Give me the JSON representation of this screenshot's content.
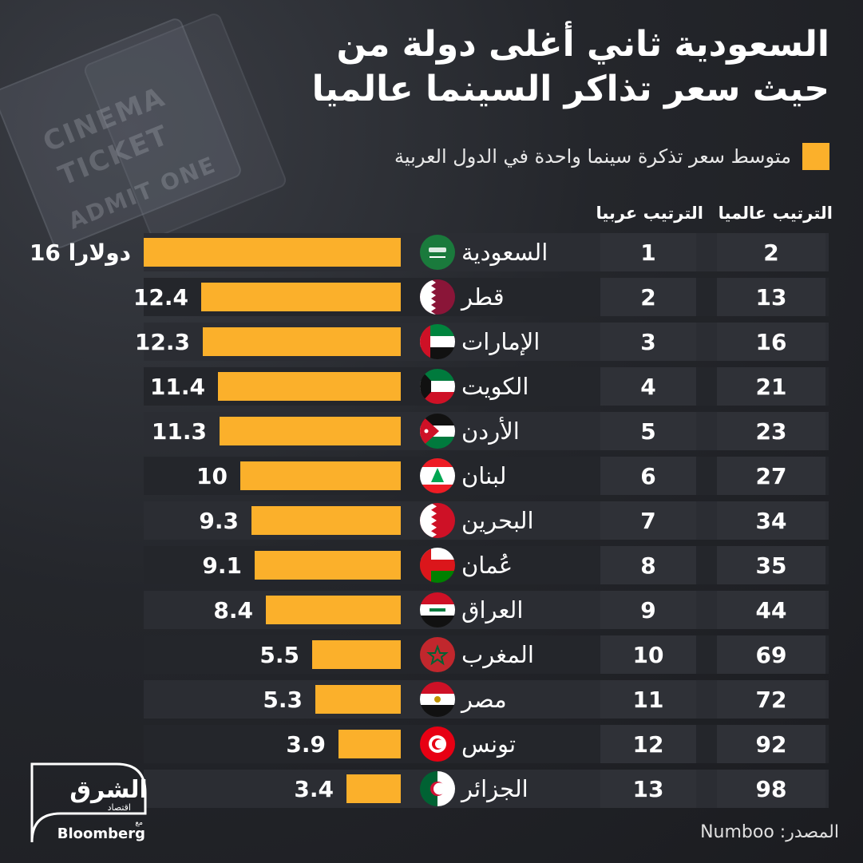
{
  "background": {
    "ticket_line1": "CINEMA",
    "ticket_line2": "TICKET",
    "ticket_line3": "ADMIT ONE"
  },
  "brand": {
    "logo_main": "الشرق",
    "logo_sub": "اقتصاد",
    "logo_with": "مع",
    "partner": "Bloomberg"
  },
  "chart_data": {
    "type": "bar",
    "orientation": "horizontal",
    "title_line1": "السعودية ثاني أغلى دولة من",
    "title_line2": "حيث سعر تذاكر السينما عالميا",
    "legend": "متوسط سعر تذكرة سينما واحدة في الدول العربية",
    "headers": {
      "world_rank": "الترتيب عالميا",
      "arab_rank": "الترتيب عربيا"
    },
    "unit_suffix": "دولارا",
    "value_range": [
      0,
      16
    ],
    "source_label": "المصدر:",
    "source": "Numboo",
    "color": "#fbb02b",
    "rows": [
      {
        "country": "السعودية",
        "value": 16,
        "label": "16 دولارا",
        "arab_rank": "1",
        "world_rank": "2",
        "flag": "saudi-arabia"
      },
      {
        "country": "قطر",
        "value": 12.4,
        "label": "12.4",
        "arab_rank": "2",
        "world_rank": "13",
        "flag": "qatar"
      },
      {
        "country": "الإمارات",
        "value": 12.3,
        "label": "12.3",
        "arab_rank": "3",
        "world_rank": "16",
        "flag": "uae"
      },
      {
        "country": "الكويت",
        "value": 11.4,
        "label": "11.4",
        "arab_rank": "4",
        "world_rank": "21",
        "flag": "kuwait"
      },
      {
        "country": "الأردن",
        "value": 11.3,
        "label": "11.3",
        "arab_rank": "5",
        "world_rank": "23",
        "flag": "jordan"
      },
      {
        "country": "لبنان",
        "value": 10,
        "label": "10",
        "arab_rank": "6",
        "world_rank": "27",
        "flag": "lebanon"
      },
      {
        "country": "البحرين",
        "value": 9.3,
        "label": "9.3",
        "arab_rank": "7",
        "world_rank": "34",
        "flag": "bahrain"
      },
      {
        "country": "عُمان",
        "value": 9.1,
        "label": "9.1",
        "arab_rank": "8",
        "world_rank": "35",
        "flag": "oman"
      },
      {
        "country": "العراق",
        "value": 8.4,
        "label": "8.4",
        "arab_rank": "9",
        "world_rank": "44",
        "flag": "iraq"
      },
      {
        "country": "المغرب",
        "value": 5.5,
        "label": "5.5",
        "arab_rank": "10",
        "world_rank": "69",
        "flag": "morocco"
      },
      {
        "country": "مصر",
        "value": 5.3,
        "label": "5.3",
        "arab_rank": "11",
        "world_rank": "72",
        "flag": "egypt"
      },
      {
        "country": "تونس",
        "value": 3.9,
        "label": "3.9",
        "arab_rank": "12",
        "world_rank": "92",
        "flag": "tunisia"
      },
      {
        "country": "الجزائر",
        "value": 3.4,
        "label": "3.4",
        "arab_rank": "13",
        "world_rank": "98",
        "flag": "algeria"
      }
    ]
  }
}
